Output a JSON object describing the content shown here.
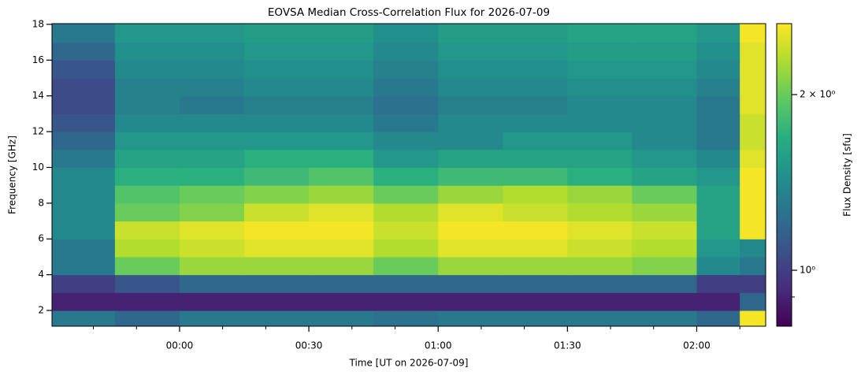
{
  "chart_data": {
    "type": "heatmap",
    "title": "EOVSA Median Cross-Correlation Flux for 2026-07-09",
    "x_label": "Time [UT on 2026-07-09]",
    "y_label": "Frequency [GHz]",
    "colorbar_label": "Flux Density [sfu]",
    "colormap": "viridis",
    "color_log": true,
    "xlim": [
      -29.6,
      136
    ],
    "xticks": [
      {
        "value": 0,
        "label": "00:00"
      },
      {
        "value": 30,
        "label": "00:30"
      },
      {
        "value": 60,
        "label": "01:00"
      },
      {
        "value": 90,
        "label": "01:30"
      },
      {
        "value": 120,
        "label": "02:00"
      }
    ],
    "xminor_ticks": [
      -20,
      -10,
      10,
      20,
      40,
      50,
      70,
      80,
      100,
      110,
      130
    ],
    "ylim": [
      1.12,
      18.04
    ],
    "yticks": [
      2,
      4,
      6,
      8,
      10,
      12,
      14,
      16,
      18
    ],
    "clim": [
      0.802,
      2.646
    ],
    "cticks": [
      {
        "value": 1,
        "label": "10⁰"
      },
      {
        "value": 2,
        "label": "2 × 10⁰"
      }
    ],
    "cminor_ticks": [
      0.9
    ],
    "x_edges": [
      -29.6,
      -15,
      0,
      15,
      30,
      45,
      60,
      75,
      90,
      105,
      120,
      130,
      136
    ],
    "y_edges": [
      1.12,
      2,
      3,
      4,
      5,
      6,
      7,
      8,
      9,
      10,
      11,
      12,
      13,
      14,
      15,
      16,
      17,
      18.04
    ],
    "z": [
      [
        1.3,
        1.2,
        1.3,
        1.3,
        1.3,
        1.25,
        1.3,
        1.3,
        1.3,
        1.3,
        1.2,
        2.6
      ],
      [
        0.9,
        0.9,
        0.9,
        0.9,
        0.9,
        0.9,
        0.9,
        0.9,
        0.9,
        0.9,
        0.9,
        1.2
      ],
      [
        1.0,
        1.1,
        1.2,
        1.2,
        1.2,
        1.2,
        1.2,
        1.2,
        1.2,
        1.2,
        1.0,
        1.0
      ],
      [
        1.3,
        2.0,
        2.2,
        2.2,
        2.2,
        2.0,
        2.2,
        2.2,
        2.2,
        2.1,
        1.4,
        1.3
      ],
      [
        1.3,
        2.3,
        2.4,
        2.5,
        2.5,
        2.3,
        2.5,
        2.5,
        2.4,
        2.3,
        1.5,
        1.4
      ],
      [
        1.4,
        2.4,
        2.5,
        2.6,
        2.6,
        2.4,
        2.6,
        2.6,
        2.5,
        2.4,
        1.6,
        2.6
      ],
      [
        1.4,
        2.0,
        2.1,
        2.4,
        2.5,
        2.3,
        2.5,
        2.4,
        2.3,
        2.2,
        1.6,
        2.6
      ],
      [
        1.4,
        1.9,
        2.0,
        2.1,
        2.2,
        2.0,
        2.2,
        2.3,
        2.2,
        2.0,
        1.6,
        2.6
      ],
      [
        1.4,
        1.7,
        1.7,
        1.8,
        1.9,
        1.7,
        1.8,
        1.8,
        1.7,
        1.6,
        1.5,
        2.6
      ],
      [
        1.3,
        1.6,
        1.6,
        1.7,
        1.7,
        1.5,
        1.6,
        1.6,
        1.6,
        1.5,
        1.4,
        2.5
      ],
      [
        1.2,
        1.5,
        1.5,
        1.5,
        1.5,
        1.4,
        1.4,
        1.5,
        1.5,
        1.4,
        1.3,
        2.4
      ],
      [
        1.1,
        1.4,
        1.4,
        1.4,
        1.4,
        1.3,
        1.4,
        1.4,
        1.4,
        1.4,
        1.3,
        2.4
      ],
      [
        1.05,
        1.35,
        1.3,
        1.35,
        1.35,
        1.25,
        1.35,
        1.35,
        1.4,
        1.4,
        1.3,
        2.5
      ],
      [
        1.05,
        1.35,
        1.35,
        1.4,
        1.4,
        1.3,
        1.4,
        1.4,
        1.45,
        1.45,
        1.35,
        2.5
      ],
      [
        1.1,
        1.4,
        1.4,
        1.45,
        1.45,
        1.35,
        1.45,
        1.45,
        1.5,
        1.5,
        1.4,
        2.5
      ],
      [
        1.2,
        1.45,
        1.45,
        1.5,
        1.5,
        1.4,
        1.5,
        1.5,
        1.55,
        1.55,
        1.45,
        2.5
      ],
      [
        1.3,
        1.5,
        1.5,
        1.55,
        1.55,
        1.45,
        1.55,
        1.55,
        1.6,
        1.6,
        1.5,
        2.6
      ]
    ]
  }
}
